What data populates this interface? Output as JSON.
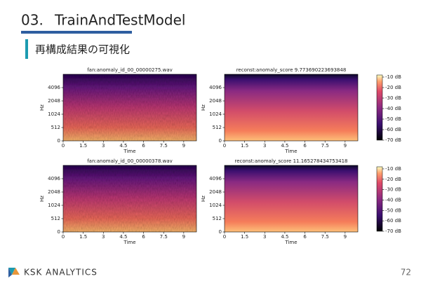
{
  "header": {
    "number": "03.",
    "title": "TrainAndTestModel"
  },
  "section_title": "再構成結果の可視化",
  "panels": [
    {
      "title": "fan:anomaly_id_00_00000275.wav",
      "xlabel": "Time",
      "ylabel": "Hz",
      "xlim": [
        0,
        9.95
      ],
      "xticks": [
        0,
        1.5,
        3,
        4.5,
        6,
        7.5,
        9
      ],
      "ylim": [
        0,
        8192
      ],
      "yscale": "symlog",
      "linthresh": 512,
      "yticks": [
        0,
        512,
        1024,
        2048,
        4096
      ],
      "kind": "original"
    },
    {
      "title": "reconst:anomaly_score 9.773690223693848",
      "xlabel": "Time",
      "ylabel": "Hz",
      "xlim": [
        0,
        9.95
      ],
      "xticks": [
        0,
        1.5,
        3,
        4.5,
        6,
        7.5,
        9
      ],
      "ylim": [
        0,
        8192
      ],
      "yscale": "symlog",
      "linthresh": 512,
      "yticks": [
        0,
        512,
        1024,
        2048,
        4096
      ],
      "kind": "reconst"
    },
    {
      "title": "fan:anomaly_id_00_00000378.wav",
      "xlabel": "Time",
      "ylabel": "Hz",
      "xlim": [
        0,
        9.95
      ],
      "xticks": [
        0,
        1.5,
        3,
        4.5,
        6,
        7.5,
        9
      ],
      "ylim": [
        0,
        8192
      ],
      "yscale": "symlog",
      "linthresh": 512,
      "yticks": [
        0,
        512,
        1024,
        2048,
        4096
      ],
      "kind": "original"
    },
    {
      "title": "reconst:anomaly_score 11.165278434753418",
      "xlabel": "Time",
      "ylabel": "Hz",
      "xlim": [
        0,
        9.95
      ],
      "xticks": [
        0,
        1.5,
        3,
        4.5,
        6,
        7.5,
        9
      ],
      "ylim": [
        0,
        8192
      ],
      "yscale": "symlog",
      "linthresh": 512,
      "yticks": [
        0,
        512,
        1024,
        2048,
        4096
      ],
      "kind": "reconst"
    }
  ],
  "colorbars": [
    {
      "ylim": [
        -70,
        -8
      ],
      "ticks": [
        {
          "value": -10,
          "label": "-10 dB"
        },
        {
          "value": -20,
          "label": "-20 dB"
        },
        {
          "value": -30,
          "label": "-30 dB"
        },
        {
          "value": -40,
          "label": "-40 dB"
        },
        {
          "value": -50,
          "label": "-50 dB"
        },
        {
          "value": -60,
          "label": "-60 dB"
        },
        {
          "value": -70,
          "label": "-70 dB"
        }
      ]
    },
    {
      "ylim": [
        -70,
        -8
      ],
      "ticks": [
        {
          "value": -10,
          "label": "-10 dB"
        },
        {
          "value": -20,
          "label": "-20 dB"
        },
        {
          "value": -30,
          "label": "-30 dB"
        },
        {
          "value": -40,
          "label": "-40 dB"
        },
        {
          "value": -50,
          "label": "-50 dB"
        },
        {
          "value": -60,
          "label": "-60 dB"
        },
        {
          "value": -70,
          "label": "-70 dB"
        }
      ]
    }
  ],
  "footer": {
    "logo": "KSK ANALYTICS",
    "page": 72
  }
}
